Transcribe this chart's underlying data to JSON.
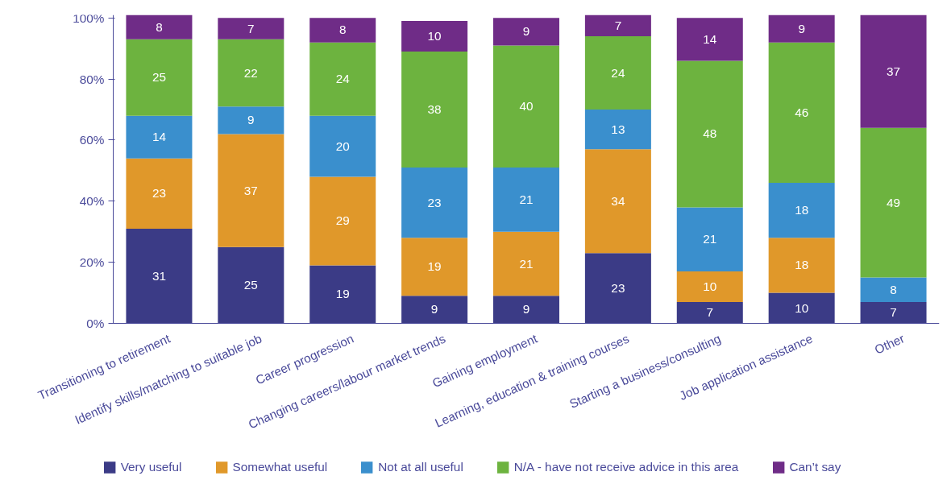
{
  "chart_data": {
    "type": "bar",
    "stacked": true,
    "data_labels": true,
    "legend": "bottom",
    "grid": false,
    "categories": [
      "Transitioning to retirement",
      "Identify skills/matching to suitable job",
      "Career progression",
      "Changing careers/labour market trends",
      "Gaining employment",
      "Learning, education & training courses",
      "Starting a business/consulting",
      "Job application assistance",
      "Other"
    ],
    "ylim": [
      0,
      101
    ],
    "yticks": [
      {
        "value": 0,
        "label": "0%"
      },
      {
        "value": 20,
        "label": "20%"
      },
      {
        "value": 40,
        "label": "40%"
      },
      {
        "value": 60,
        "label": "60%"
      },
      {
        "value": 80,
        "label": "80%"
      },
      {
        "value": 100,
        "label": "100%"
      }
    ],
    "series": [
      {
        "name": "Very useful",
        "color": "#3b3b86",
        "values": [
          31,
          25,
          19,
          9,
          9,
          23,
          7,
          10,
          7
        ]
      },
      {
        "name": "Somewhat useful",
        "color": "#e0982a",
        "values": [
          23,
          37,
          29,
          19,
          21,
          34,
          10,
          18,
          null
        ]
      },
      {
        "name": "Not at all useful",
        "color": "#3a8fcd",
        "values": [
          14,
          9,
          20,
          23,
          21,
          13,
          21,
          18,
          8
        ]
      },
      {
        "name": "N/A - have not receive advice in this area",
        "color": "#6db33f",
        "values": [
          25,
          22,
          24,
          38,
          40,
          24,
          48,
          46,
          49
        ]
      },
      {
        "name": "Can’t say",
        "color": "#6f2c87",
        "values": [
          8,
          7,
          8,
          10,
          9,
          7,
          14,
          9,
          37
        ]
      }
    ]
  }
}
